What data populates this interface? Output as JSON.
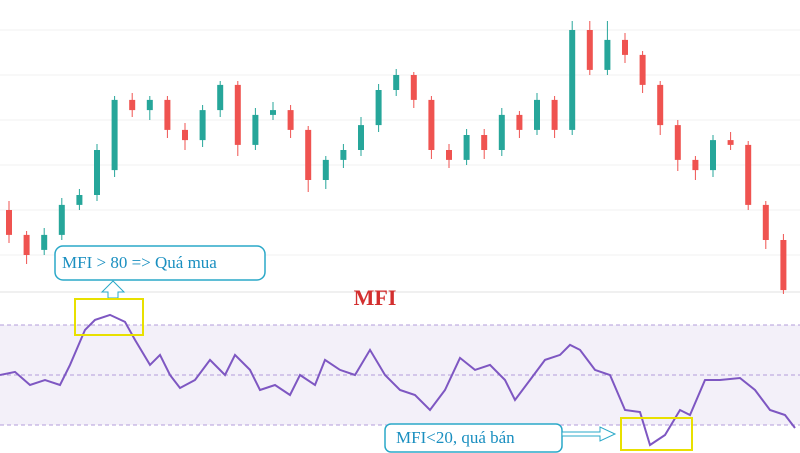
{
  "chart_data": [
    {
      "type": "candlestick",
      "ylim": [
        0,
        100
      ],
      "up_color": "#26a69a",
      "down_color": "#ef5350",
      "open": [
        30,
        21.7,
        16.7,
        21.7,
        31.7,
        35,
        43.3,
        66.7,
        63.3,
        66.7,
        56.7,
        53.3,
        63.3,
        71.7,
        51.7,
        61.7,
        63.3,
        56.7,
        40,
        46.7,
        50,
        58.3,
        70,
        75,
        66.7,
        50,
        46.7,
        55,
        50,
        61.7,
        56.7,
        66.7,
        56.7,
        90,
        76.7,
        86.7,
        81.7,
        71.7,
        58.3,
        46.7,
        43.3,
        53.3,
        51.7,
        31.7,
        20
      ],
      "high": [
        33,
        23,
        24,
        34,
        37,
        52,
        68,
        69,
        68,
        68,
        59,
        65,
        73,
        73,
        64,
        66,
        65,
        58,
        48,
        52,
        61,
        72,
        77,
        76,
        68,
        52,
        57,
        57,
        64,
        63,
        69,
        68,
        93,
        93,
        93,
        89,
        83,
        73,
        60,
        48,
        55,
        56,
        53,
        33,
        22
      ],
      "low": [
        19,
        12,
        15,
        20,
        30,
        33,
        41,
        61,
        60,
        54,
        50,
        51,
        61,
        48,
        50,
        60,
        54,
        36,
        37,
        44,
        48,
        56,
        68,
        64,
        47,
        44,
        45,
        47,
        48,
        54,
        55,
        54,
        55,
        75,
        75,
        79,
        69,
        55,
        43,
        40,
        41,
        50,
        30,
        17,
        2
      ],
      "close": [
        21.7,
        15,
        21.7,
        31.7,
        35,
        50,
        66.7,
        63.3,
        66.7,
        56.7,
        53.3,
        63.3,
        71.7,
        51.7,
        61.7,
        63.3,
        56.7,
        40,
        46.7,
        50,
        58.3,
        70,
        75,
        66.7,
        50,
        46.7,
        55,
        50,
        61.7,
        56.7,
        66.7,
        56.7,
        90,
        76.7,
        86.7,
        81.7,
        71.7,
        58.3,
        46.7,
        43.3,
        53.3,
        51.7,
        31.7,
        20,
        3.3
      ],
      "annotation": "MFI > 80 => Quá mua"
    },
    {
      "type": "line",
      "title": "MFI",
      "xlim": [
        0,
        800
      ],
      "ylim": [
        0,
        100
      ],
      "levels": [
        80,
        50,
        20
      ],
      "band": [
        20,
        80
      ],
      "band_color": "rgba(126,87,194,0.09)",
      "x": [
        0,
        15,
        30,
        45,
        60,
        70,
        85,
        95,
        110,
        125,
        135,
        150,
        160,
        170,
        180,
        195,
        210,
        225,
        235,
        250,
        260,
        275,
        290,
        300,
        315,
        325,
        340,
        355,
        370,
        385,
        400,
        415,
        430,
        445,
        460,
        475,
        490,
        505,
        515,
        530,
        545,
        560,
        570,
        580,
        595,
        610,
        625,
        640,
        650,
        665,
        680,
        690,
        705,
        720,
        740,
        755,
        770,
        785,
        795
      ],
      "series": [
        {
          "name": "MFI",
          "color": "#7e57c2",
          "values": [
            50,
            51.8,
            44,
            47,
            44,
            56,
            77,
            83,
            86,
            81.8,
            71,
            56,
            62,
            50,
            42.2,
            47,
            59,
            50,
            62,
            53,
            41,
            44,
            38,
            50,
            44,
            59,
            53,
            50,
            65,
            50,
            41,
            38,
            29,
            41,
            60.2,
            53,
            56,
            47,
            35,
            47,
            59,
            62,
            68,
            65,
            53,
            50,
            29,
            27.8,
            8,
            14,
            29,
            26,
            47,
            47,
            48.2,
            41,
            29,
            26,
            18.2
          ]
        }
      ],
      "annotation": "MFI<20, quá bán"
    }
  ]
}
